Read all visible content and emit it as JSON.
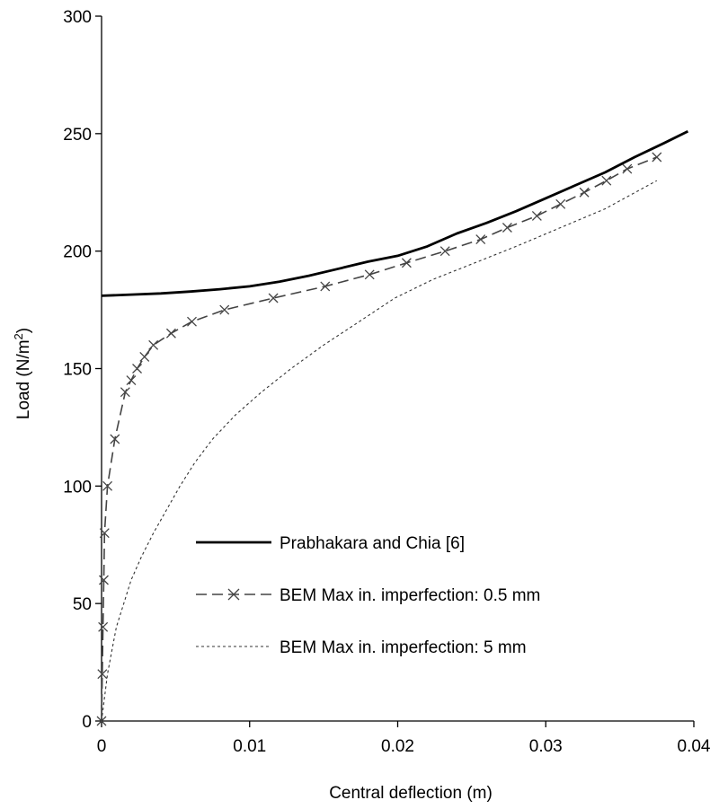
{
  "chart_data": {
    "type": "line",
    "title": "",
    "xlabel": "Central deflection (m)",
    "ylabel_main": "Load (N/m",
    "ylabel_sup": "2",
    "ylabel_end": ")",
    "xlim": [
      0,
      0.04
    ],
    "ylim": [
      0,
      300
    ],
    "x_ticks": [
      0,
      0.01,
      0.02,
      0.03,
      0.04
    ],
    "x_tick_labels": [
      "0",
      "0.01",
      "0.02",
      "0.03",
      "0.04"
    ],
    "y_ticks": [
      0,
      50,
      100,
      150,
      200,
      250,
      300
    ],
    "y_tick_labels": [
      "0",
      "50",
      "100",
      "150",
      "200",
      "250",
      "300"
    ],
    "grid": false,
    "legend_position": "bottom-right",
    "series": [
      {
        "name": "Prabhakara and Chia [6]",
        "style": "solid",
        "color": "#000000",
        "points": [
          [
            0,
            181
          ],
          [
            0.002,
            181.5
          ],
          [
            0.004,
            182
          ],
          [
            0.006,
            182.8
          ],
          [
            0.008,
            183.8
          ],
          [
            0.01,
            185
          ],
          [
            0.012,
            187
          ],
          [
            0.014,
            189.5
          ],
          [
            0.016,
            192.5
          ],
          [
            0.018,
            195.5
          ],
          [
            0.02,
            198
          ],
          [
            0.022,
            202
          ],
          [
            0.024,
            207.5
          ],
          [
            0.026,
            212
          ],
          [
            0.028,
            217
          ],
          [
            0.03,
            222.5
          ],
          [
            0.032,
            228
          ],
          [
            0.034,
            233.5
          ],
          [
            0.036,
            240
          ],
          [
            0.038,
            246
          ],
          [
            0.0396,
            251
          ]
        ]
      },
      {
        "name": "BEM Max in. imperfection: 0.5 mm",
        "style": "dashed",
        "marker": "x",
        "color": "#444444",
        "points": [
          [
            0,
            0
          ],
          [
            5e-05,
            20
          ],
          [
            0.0001,
            40
          ],
          [
            0.00015,
            60
          ],
          [
            0.0002,
            80
          ],
          [
            0.0004,
            100
          ],
          [
            0.0009,
            120
          ],
          [
            0.0016,
            140
          ],
          [
            0.002,
            145
          ],
          [
            0.0024,
            150
          ],
          [
            0.0029,
            155
          ],
          [
            0.0035,
            160
          ],
          [
            0.0047,
            165
          ],
          [
            0.0061,
            170
          ],
          [
            0.0083,
            175
          ],
          [
            0.0116,
            180
          ],
          [
            0.0151,
            185
          ],
          [
            0.0181,
            190
          ],
          [
            0.0206,
            195
          ],
          [
            0.0232,
            200
          ],
          [
            0.0256,
            205
          ],
          [
            0.0274,
            210
          ],
          [
            0.0294,
            215
          ],
          [
            0.031,
            220
          ],
          [
            0.0326,
            225
          ],
          [
            0.0341,
            230
          ],
          [
            0.0355,
            235
          ],
          [
            0.0375,
            240
          ]
        ]
      },
      {
        "name": "BEM Max in. imperfection: 5 mm",
        "style": "dotted",
        "color": "#333333",
        "points": [
          [
            0,
            0
          ],
          [
            0.0002,
            10
          ],
          [
            0.0004,
            20
          ],
          [
            0.0007,
            30
          ],
          [
            0.001,
            40
          ],
          [
            0.0015,
            50
          ],
          [
            0.002,
            60
          ],
          [
            0.0027,
            70
          ],
          [
            0.0035,
            80
          ],
          [
            0.0044,
            90
          ],
          [
            0.0053,
            100
          ],
          [
            0.0063,
            110
          ],
          [
            0.0075,
            120
          ],
          [
            0.009,
            130
          ],
          [
            0.0108,
            140
          ],
          [
            0.0128,
            150
          ],
          [
            0.015,
            160
          ],
          [
            0.0174,
            170
          ],
          [
            0.0198,
            180
          ],
          [
            0.0224,
            188
          ],
          [
            0.0252,
            195
          ],
          [
            0.028,
            202
          ],
          [
            0.031,
            210
          ],
          [
            0.034,
            218
          ],
          [
            0.0375,
            230
          ]
        ]
      }
    ]
  }
}
